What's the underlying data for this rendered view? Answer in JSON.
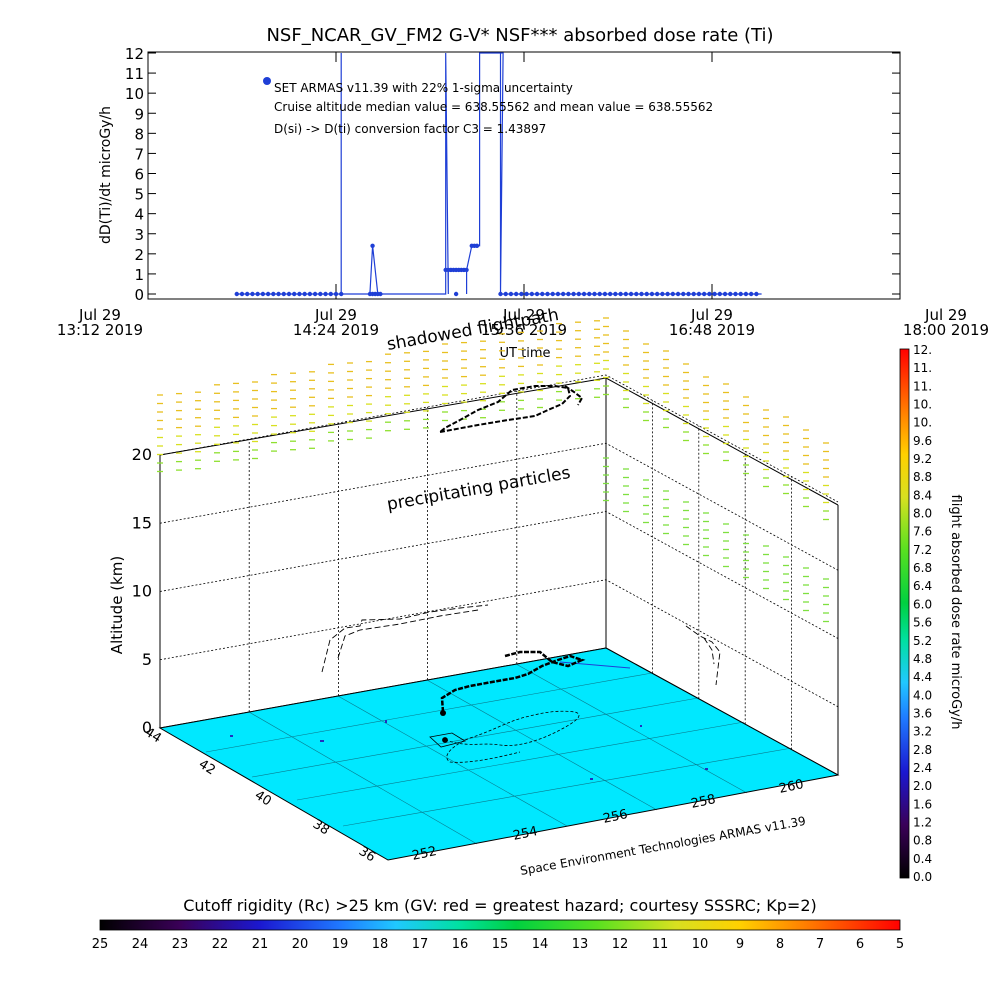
{
  "title": "NSF_NCAR_GV_FM2 G-V* NSF*** absorbed dose rate (Ti)",
  "colors": {
    "trace": "#1f3fd6",
    "ground": "#00e8ff",
    "black": "#000000"
  },
  "chart_data": [
    {
      "type": "line",
      "ylabel": "dD(Ti)/dt microGy/h",
      "xlabel": "UT time",
      "ylim": [
        0,
        12
      ],
      "y_ticks": [
        "0",
        "1",
        "2",
        "3",
        "4",
        "5",
        "6",
        "7",
        "8",
        "9",
        "10",
        "11",
        "12"
      ],
      "x_ticks": [
        {
          "day": "Jul 29",
          "time": "13:12 2019"
        },
        {
          "day": "Jul 29",
          "time": "14:24 2019"
        },
        {
          "day": "Jul 29",
          "time": "15:36 2019"
        },
        {
          "day": "Jul 29",
          "time": "16:48 2019"
        },
        {
          "day": "Jul 29",
          "time": "18:00 2019"
        }
      ],
      "annotations": [
        "SET ARMAS v11.39 with 22% 1-sigma uncertainty",
        "Cruise altitude median value = 638.55562 and mean value = 638.55562",
        "D(si) -> D(ti) conversion factor C3 = 1.43897"
      ],
      "series": [
        {
          "x_minutes_since_1312": [
            34,
            74,
            74,
            74,
            85,
            86,
            88,
            88,
            88,
            88,
            114,
            114,
            115,
            115,
            115,
            115,
            122,
            122,
            122,
            124,
            127,
            127,
            136,
            135,
            135,
            135,
            180,
            220,
            234
          ],
          "values": [
            0,
            0,
            12,
            0,
            0,
            2.4,
            0,
            0,
            0,
            0,
            0,
            12,
            0,
            1.2,
            1.2,
            1.2,
            1.2,
            0,
            1.2,
            2.4,
            2.4,
            12,
            12,
            0,
            12,
            0,
            0,
            0,
            0
          ]
        }
      ]
    },
    {
      "type": "scatter",
      "title": "",
      "zlabel": "Altitude (km)",
      "z_ticks": [
        "0",
        "5",
        "10",
        "15",
        "20"
      ],
      "lat_ticks": [
        "36",
        "38",
        "40",
        "42",
        "44"
      ],
      "lon_ticks": [
        "252",
        "254",
        "256",
        "258",
        "260"
      ],
      "labels": {
        "shadowed": "shadowed flightpath",
        "precip": "precipitating particles",
        "credit": "Space Environment Technologies ARMAS v11.39"
      }
    },
    {
      "type": "heatmap",
      "label": "flight absorbed dose rate microGy/h",
      "ticks": [
        "0.0",
        "0.4",
        "0.8",
        "1.2",
        "1.6",
        "2.0",
        "2.4",
        "2.8",
        "3.2",
        "3.6",
        "4.0",
        "4.4",
        "4.8",
        "5.2",
        "5.6",
        "6.0",
        "6.4",
        "6.8",
        "7.2",
        "7.6",
        "8.0",
        "8.4",
        "8.8",
        "9.2",
        "9.6",
        "10.",
        "10.",
        "11.",
        "11.",
        "12."
      ]
    },
    {
      "type": "heatmap",
      "label": "Cutoff rigidity (Rc) >25 km (GV: red = greatest hazard; courtesy SSSRC; Kp=2)",
      "ticks": [
        "25",
        "24",
        "23",
        "22",
        "21",
        "20",
        "19",
        "18",
        "17",
        "16",
        "15",
        "14",
        "13",
        "12",
        "11",
        "10",
        "9",
        "8",
        "7",
        "6",
        "5"
      ]
    }
  ]
}
